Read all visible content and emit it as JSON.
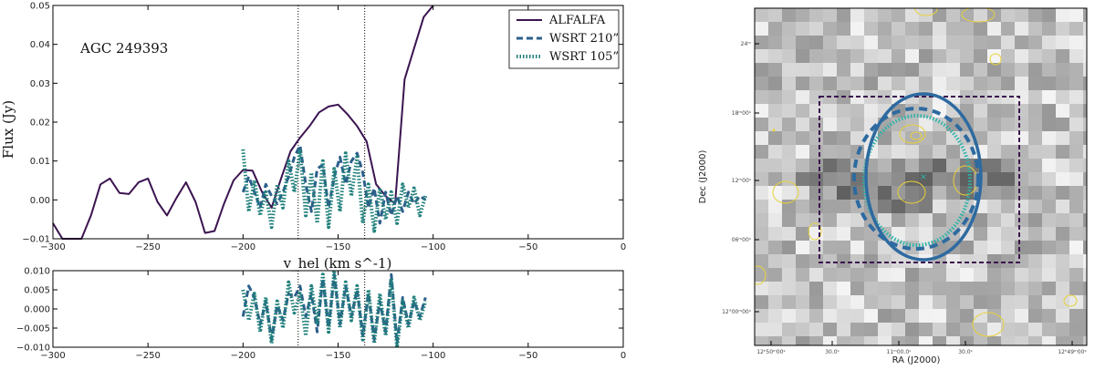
{
  "chart_data": [
    {
      "type": "line",
      "panel": "spectrum",
      "annotation": "AGC 249393",
      "xlabel": "v_hel (km s^-1)",
      "ylabel": "Flux (Jy)",
      "xlim": [
        -300,
        0
      ],
      "ylim": [
        -0.01,
        0.05
      ],
      "xticks": [
        -300,
        -250,
        -200,
        -150,
        -100,
        -50,
        0
      ],
      "xtick_labels": [
        "−300",
        "−250",
        "−200",
        "−150",
        "−100",
        "−50",
        "0"
      ],
      "yticks": [
        -0.01,
        0.0,
        0.01,
        0.02,
        0.03,
        0.04,
        0.05
      ],
      "ytick_labels": [
        "−0.01",
        "0.00",
        "0.01",
        "0.02",
        "0.03",
        "0.04",
        "0.05"
      ],
      "vlines": [
        -171,
        -136
      ],
      "legend_position": "top-right",
      "series": [
        {
          "name": "ALFALFA",
          "style": "solid",
          "color": "#3b1450",
          "x": [
            -300,
            -295,
            -290,
            -285,
            -280,
            -275,
            -270,
            -265,
            -260,
            -255,
            -250,
            -245,
            -240,
            -235,
            -230,
            -225,
            -220,
            -215,
            -210,
            -205,
            -200,
            -195,
            -190,
            -185,
            -180,
            -175,
            -170,
            -165,
            -160,
            -155,
            -150,
            -145,
            -140,
            -135,
            -130,
            -125,
            -120,
            -115,
            -110,
            -105,
            -100
          ],
          "y": [
            -0.006,
            -0.011,
            -0.012,
            -0.01,
            -0.004,
            0.004,
            0.0055,
            0.0018,
            0.0015,
            0.0045,
            0.0055,
            -0.0005,
            -0.004,
            0.0005,
            0.0045,
            -0.0005,
            -0.0085,
            -0.008,
            -0.001,
            0.005,
            0.0077,
            0.0075,
            0.002,
            -0.002,
            0.0055,
            0.0125,
            0.016,
            0.019,
            0.0225,
            0.024,
            0.0245,
            0.022,
            0.019,
            0.015,
            0.004,
            0.001,
            -0.001,
            0.031,
            0.039,
            0.047,
            0.054
          ]
        },
        {
          "name": "WSRT 210”",
          "style": "dashed",
          "color": "#2c5f8a",
          "x": [
            -200,
            -197,
            -194,
            -191,
            -188,
            -185,
            -182,
            -179,
            -176,
            -173,
            -170,
            -167,
            -164,
            -161,
            -158,
            -155,
            -152,
            -149,
            -146,
            -143,
            -140,
            -137,
            -134,
            -131,
            -128,
            -125,
            -122,
            -119,
            -116,
            -113,
            -110,
            -107,
            -104
          ],
          "y": [
            0.002,
            0.006,
            0.002,
            -0.002,
            0.004,
            0.001,
            -0.001,
            0.002,
            0.006,
            0.011,
            0.014,
            0.004,
            -0.003,
            0.008,
            0.009,
            -0.002,
            0.006,
            0.011,
            0.004,
            0.01,
            0.012,
            0.007,
            -0.002,
            0.003,
            -0.006,
            0.002,
            -0.004,
            0.001,
            -0.003,
            0.002,
            -0.001,
            0.001,
            0.0
          ]
        },
        {
          "name": "WSRT 105”",
          "style": "dotted",
          "color": "#1e7f7a",
          "x": [
            -200,
            -197,
            -194,
            -191,
            -188,
            -185,
            -182,
            -179,
            -176,
            -173,
            -170,
            -167,
            -164,
            -161,
            -158,
            -155,
            -152,
            -149,
            -146,
            -143,
            -140,
            -137,
            -134,
            -131,
            -128,
            -125,
            -122,
            -119,
            -116,
            -113,
            -110,
            -107,
            -104
          ],
          "y": [
            0.013,
            -0.003,
            0.005,
            -0.004,
            0.002,
            -0.007,
            0.004,
            -0.002,
            0.01,
            0.002,
            0.013,
            -0.004,
            0.007,
            -0.006,
            0.01,
            -0.007,
            0.008,
            -0.003,
            0.012,
            0.001,
            0.011,
            -0.006,
            0.004,
            -0.008,
            0.003,
            -0.005,
            0.002,
            -0.006,
            0.004,
            -0.002,
            0.003,
            -0.004,
            0.001
          ]
        }
      ]
    },
    {
      "type": "line",
      "panel": "residual",
      "xlim": [
        -300,
        0
      ],
      "ylim": [
        -0.01,
        0.01
      ],
      "xticks": [
        -300,
        -250,
        -200,
        -150,
        -100,
        -50,
        0
      ],
      "xtick_labels": [
        "−300",
        "−250",
        "−200",
        "−150",
        "−100",
        "−50",
        "0"
      ],
      "yticks": [
        -0.01,
        -0.005,
        0.0,
        0.005,
        0.01
      ],
      "ytick_labels": [
        "−0.010",
        "−0.005",
        "0.000",
        "0.005",
        "0.010"
      ],
      "vlines": [
        -171,
        -136
      ],
      "series": [
        {
          "style": "dashed",
          "color": "#2c5f8a",
          "x": [
            -200,
            -197,
            -194,
            -191,
            -188,
            -185,
            -182,
            -179,
            -176,
            -173,
            -170,
            -167,
            -164,
            -161,
            -158,
            -155,
            -152,
            -149,
            -146,
            -143,
            -140,
            -137,
            -134,
            -131,
            -128,
            -125,
            -122,
            -119,
            -116,
            -113,
            -110,
            -107,
            -104
          ],
          "y": [
            -0.002,
            0.006,
            0.003,
            -0.004,
            0.002,
            -0.008,
            0.001,
            -0.003,
            0.004,
            0.003,
            0.006,
            -0.002,
            0.004,
            -0.006,
            0.008,
            -0.005,
            0.009,
            -0.004,
            0.006,
            -0.002,
            0.005,
            -0.007,
            0.004,
            -0.008,
            0.002,
            -0.006,
            0.009,
            -0.009,
            0.003,
            -0.004,
            0.002,
            -0.002,
            0.003
          ]
        },
        {
          "style": "dotted",
          "color": "#1e7f7a",
          "x": [
            -200,
            -197,
            -194,
            -191,
            -188,
            -185,
            -182,
            -179,
            -176,
            -173,
            -170,
            -167,
            -164,
            -161,
            -158,
            -155,
            -152,
            -149,
            -146,
            -143,
            -140,
            -137,
            -134,
            -131,
            -128,
            -125,
            -122,
            -119,
            -116,
            -113,
            -110,
            -107,
            -104
          ],
          "y": [
            0.005,
            -0.003,
            0.004,
            -0.006,
            0.003,
            -0.009,
            0.002,
            -0.005,
            0.007,
            -0.001,
            0.004,
            -0.007,
            0.006,
            -0.004,
            0.009,
            -0.006,
            0.01,
            -0.005,
            0.007,
            -0.003,
            0.006,
            -0.008,
            0.005,
            -0.009,
            0.004,
            -0.007,
            0.008,
            -0.01,
            0.002,
            -0.005,
            0.003,
            -0.003,
            0.002
          ]
        }
      ]
    },
    {
      "type": "heatmap",
      "panel": "sky-map",
      "xlabel": "RA (J2000)",
      "ylabel": "Dec (J2000)",
      "xtick_labels": [
        "12ʰ50ᵐ00ˢ",
        "30.0ˢ",
        "11ᵐ00.0ˢ",
        "30.0ˢ",
        "12ʰ49ᵐ00ˢ"
      ],
      "ytick_labels": [
        "24ᵐ",
        "18ᵐ00ˢ",
        "12ᵐ00ˢ",
        "06ᵐ00ˢ",
        "12°00ᵐ00ˢ"
      ],
      "colors": {
        "contour": "#e8d23a",
        "ellipse_210": "#2d6aa0",
        "ellipse_105": "#2bb3a8",
        "box": "#3b1450"
      }
    }
  ]
}
